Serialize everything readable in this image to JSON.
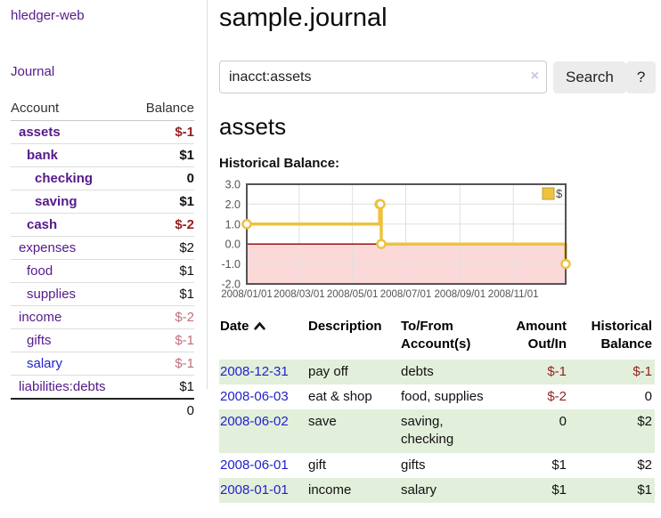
{
  "app": {
    "brand": "hledger-web"
  },
  "sidebar": {
    "journal_link": "Journal",
    "accounts_header": {
      "account": "Account",
      "balance": "Balance"
    },
    "accounts": [
      {
        "name": "assets",
        "level": 1,
        "bold": true,
        "balance": "$-1",
        "balance_style": "neg-strong"
      },
      {
        "name": "bank",
        "level": 2,
        "bold": true,
        "balance": "$1",
        "balance_style": "pos"
      },
      {
        "name": "checking",
        "level": 3,
        "bold": true,
        "balance": "0",
        "balance_style": "pos"
      },
      {
        "name": "saving",
        "level": 3,
        "bold": true,
        "balance": "$1",
        "balance_style": "pos"
      },
      {
        "name": "cash",
        "level": 2,
        "bold": true,
        "balance": "$-2",
        "balance_style": "neg-strong"
      },
      {
        "name": "expenses",
        "level": 1,
        "bold": false,
        "balance": "$2",
        "balance_style": "pos"
      },
      {
        "name": "food",
        "level": 2,
        "bold": false,
        "balance": "$1",
        "balance_style": "pos"
      },
      {
        "name": "supplies",
        "level": 2,
        "bold": false,
        "balance": "$1",
        "balance_style": "pos"
      },
      {
        "name": "income",
        "level": 1,
        "bold": false,
        "balance": "$-2",
        "balance_style": "neg-faded"
      },
      {
        "name": "gifts",
        "level": 2,
        "bold": false,
        "balance": "$-1",
        "balance_style": "neg-faded"
      },
      {
        "name": "salary",
        "level": 2,
        "bold": false,
        "link_color": "blue",
        "balance": "$-1",
        "balance_style": "neg-faded"
      },
      {
        "name": "liabilities:debts",
        "level": 1,
        "bold": false,
        "balance": "$1",
        "balance_style": "pos"
      }
    ],
    "total": "0"
  },
  "header": {
    "title": "sample.journal"
  },
  "search": {
    "value": "inacct:assets",
    "clear_icon": "×",
    "button_label": "Search",
    "help_label": "?"
  },
  "account_page": {
    "title": "assets",
    "chart_label": "Historical Balance:"
  },
  "chart_data": {
    "type": "line",
    "title": "Historical Balance",
    "step": true,
    "series": [
      {
        "name": "$",
        "color": "#edc240",
        "points": [
          [
            "2008-01-01",
            1
          ],
          [
            "2008-06-01",
            2
          ],
          [
            "2008-06-02",
            2
          ],
          [
            "2008-06-03",
            0
          ],
          [
            "2008-12-31",
            -1
          ]
        ]
      }
    ],
    "xrange": [
      "2008-01-01",
      "2008-12-31"
    ],
    "ylim": [
      -2,
      3
    ],
    "yticks": [
      3,
      2,
      1,
      0,
      -1,
      -2
    ],
    "ytick_labels": [
      "3.0",
      "2.0",
      "1.0",
      "0.0",
      "-1.0",
      "-2.0"
    ],
    "xticks": [
      "2008-01-01",
      "2008-03-01",
      "2008-05-01",
      "2008-07-01",
      "2008-09-01",
      "2008-11-01"
    ],
    "xtick_labels": [
      "2008/01/01",
      "2008/03/01",
      "2008/05/01",
      "2008/07/01",
      "2008/09/01",
      "2008/11/01"
    ],
    "legend_position": "top-right",
    "grid": true,
    "grid_color": "#e0e0e0",
    "border_color": "#545454",
    "axis_label_color": "#545454",
    "negative_region_color": "#fbd9d9",
    "zero_line_color": "#8b0000"
  },
  "register": {
    "sort": {
      "column": "date",
      "direction": "asc",
      "icon": "chevron-up"
    },
    "columns": {
      "date": "Date",
      "description": "Description",
      "tofrom": "To/From Account(s)",
      "amount": "Amount Out/In",
      "balance": "Historical Balance"
    },
    "rows": [
      {
        "date": "2008-12-31",
        "description": "pay off",
        "accounts": "debts",
        "amount": "$-1",
        "amount_neg": true,
        "balance": "$-1",
        "balance_neg": true
      },
      {
        "date": "2008-06-03",
        "description": "eat & shop",
        "accounts": "food, supplies",
        "amount": "$-2",
        "amount_neg": true,
        "balance": "0",
        "balance_neg": false
      },
      {
        "date": "2008-06-02",
        "description": "save",
        "accounts": "saving, checking",
        "amount": "0",
        "amount_neg": false,
        "balance": "$2",
        "balance_neg": false
      },
      {
        "date": "2008-06-01",
        "description": "gift",
        "accounts": "gifts",
        "amount": "$1",
        "amount_neg": false,
        "balance": "$2",
        "balance_neg": false
      },
      {
        "date": "2008-01-01",
        "description": "income",
        "accounts": "salary",
        "amount": "$1",
        "amount_neg": false,
        "balance": "$1",
        "balance_neg": false
      }
    ]
  },
  "colors": {
    "link_purple": "#551a8b",
    "link_blue": "#2222cc",
    "negative_strong": "#941f1f",
    "negative_faded": "#bf707a",
    "row_green": "#e2efda",
    "series_yellow": "#edc240"
  }
}
